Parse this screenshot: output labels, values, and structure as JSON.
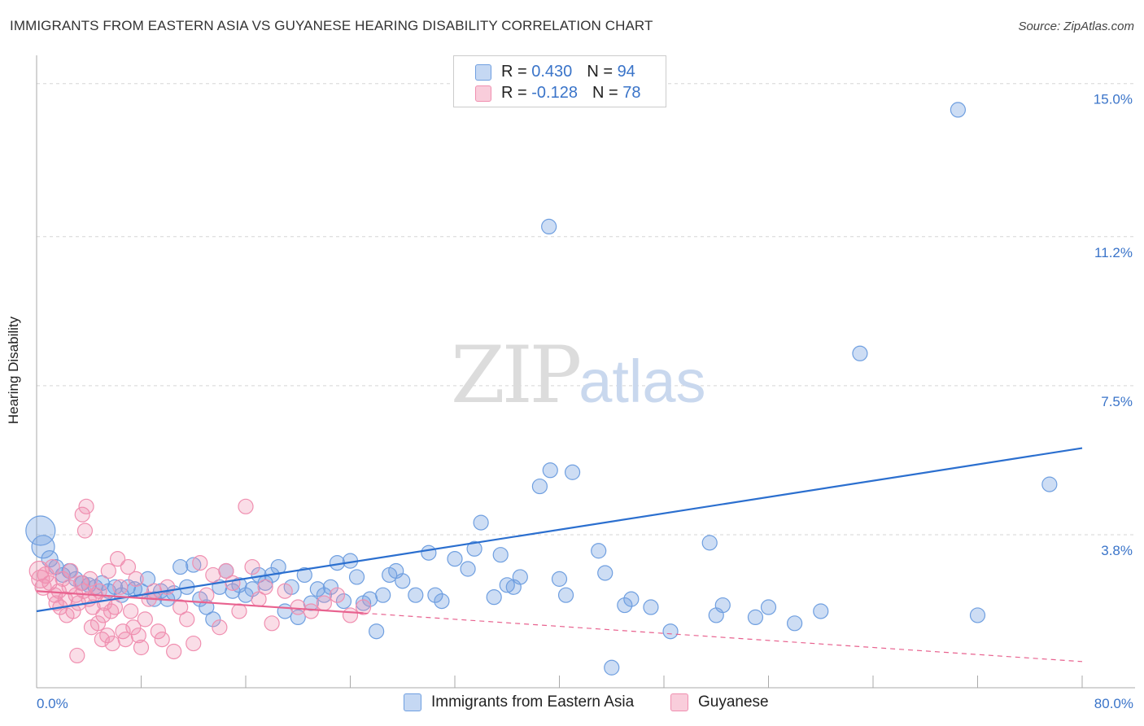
{
  "title": "IMMIGRANTS FROM EASTERN ASIA VS GUYANESE HEARING DISABILITY CORRELATION CHART",
  "source": "Source: ZipAtlas.com",
  "watermark": {
    "zip": "ZIP",
    "atlas": "atlas"
  },
  "legend": {
    "blue": {
      "r_label": "R = ",
      "r_value": "0.430",
      "n_label": "N = ",
      "n_value": "94"
    },
    "pink": {
      "r_label": "R = ",
      "r_value": "-0.128",
      "n_label": "N = ",
      "n_value": "78"
    }
  },
  "colors": {
    "blue": "#6f9fe0",
    "blue_line": "#2b6fcf",
    "pink": "#f08fb0",
    "pink_line": "#e8628f",
    "axis_text": "#3a74c9"
  },
  "chart_data": {
    "type": "scatter",
    "title": "IMMIGRANTS FROM EASTERN ASIA VS GUYANESE HEARING DISABILITY CORRELATION CHART",
    "xlabel": "",
    "ylabel": "Hearing Disability",
    "xlim": [
      0,
      80
    ],
    "ylim": [
      0,
      15.5
    ],
    "x_tick_labels": [
      "0.0%",
      "80.0%"
    ],
    "y_ticks": [
      3.8,
      7.5,
      11.2,
      15.0
    ],
    "y_tick_labels": [
      "3.8%",
      "7.5%",
      "11.2%",
      "15.0%"
    ],
    "series": [
      {
        "name": "Immigrants from Eastern Asia",
        "color": "#6f9fe0",
        "trend": {
          "x": [
            0,
            80
          ],
          "y": [
            1.9,
            5.95
          ]
        },
        "trend_solid_to": 80,
        "points": [
          [
            0.3,
            3.9,
            18
          ],
          [
            0.5,
            3.5,
            14
          ],
          [
            1,
            3.2,
            10
          ],
          [
            1.5,
            3.0,
            9
          ],
          [
            2,
            2.8,
            9
          ],
          [
            2.5,
            2.9,
            9
          ],
          [
            3,
            2.7,
            9
          ],
          [
            3.5,
            2.6,
            9
          ],
          [
            4,
            2.55,
            9
          ],
          [
            4.5,
            2.5,
            9
          ],
          [
            5,
            2.6,
            9
          ],
          [
            5.5,
            2.4,
            9
          ],
          [
            6,
            2.5,
            9
          ],
          [
            6.5,
            2.3,
            9
          ],
          [
            7,
            2.5,
            9
          ],
          [
            7.5,
            2.45,
            9
          ],
          [
            8,
            2.4,
            9
          ],
          [
            8.5,
            2.7,
            9
          ],
          [
            9,
            2.2,
            9
          ],
          [
            9.5,
            2.4,
            9
          ],
          [
            10,
            2.2,
            9
          ],
          [
            10.5,
            2.35,
            9
          ],
          [
            11,
            3.0,
            9
          ],
          [
            11.5,
            2.5,
            9
          ],
          [
            12,
            3.05,
            9
          ],
          [
            12.5,
            2.2,
            9
          ],
          [
            13,
            2.0,
            9
          ],
          [
            13.5,
            1.7,
            9
          ],
          [
            14,
            2.5,
            9
          ],
          [
            14.5,
            2.9,
            9
          ],
          [
            15,
            2.4,
            9
          ],
          [
            15.5,
            2.55,
            9
          ],
          [
            16,
            2.3,
            9
          ],
          [
            16.5,
            2.45,
            9
          ],
          [
            17,
            2.8,
            9
          ],
          [
            17.5,
            2.6,
            9
          ],
          [
            18,
            2.8,
            9
          ],
          [
            18.5,
            3.0,
            9
          ],
          [
            19,
            1.9,
            9
          ],
          [
            19.5,
            2.5,
            9
          ],
          [
            20,
            1.75,
            9
          ],
          [
            20.5,
            2.8,
            9
          ],
          [
            21,
            2.1,
            9
          ],
          [
            21.5,
            2.45,
            9
          ],
          [
            22,
            2.3,
            9
          ],
          [
            22.5,
            2.5,
            9
          ],
          [
            23,
            3.1,
            9
          ],
          [
            23.5,
            2.15,
            9
          ],
          [
            24,
            3.15,
            9
          ],
          [
            24.5,
            2.75,
            9
          ],
          [
            25,
            2.1,
            9
          ],
          [
            25.5,
            2.2,
            9
          ],
          [
            26,
            1.4,
            9
          ],
          [
            26.5,
            2.3,
            9
          ],
          [
            27,
            2.8,
            9
          ],
          [
            27.5,
            2.9,
            9
          ],
          [
            28,
            2.65,
            9
          ],
          [
            29,
            2.3,
            9
          ],
          [
            30,
            3.35,
            9
          ],
          [
            30.5,
            2.3,
            9
          ],
          [
            31,
            2.15,
            9
          ],
          [
            32,
            3.2,
            9
          ],
          [
            33,
            2.95,
            9
          ],
          [
            33.5,
            3.45,
            9
          ],
          [
            34,
            4.1,
            9
          ],
          [
            35,
            2.25,
            9
          ],
          [
            35.5,
            3.3,
            9
          ],
          [
            36,
            2.55,
            9
          ],
          [
            36.5,
            2.5,
            9
          ],
          [
            37,
            2.75,
            9
          ],
          [
            38.5,
            5.0,
            9
          ],
          [
            39.3,
            5.4,
            9
          ],
          [
            39.2,
            11.45,
            9
          ],
          [
            41,
            5.35,
            9
          ],
          [
            40,
            2.7,
            9
          ],
          [
            40.5,
            2.3,
            9
          ],
          [
            43,
            3.4,
            9
          ],
          [
            43.5,
            2.85,
            9
          ],
          [
            44,
            0.5,
            9
          ],
          [
            45,
            2.05,
            9
          ],
          [
            45.5,
            2.2,
            9
          ],
          [
            47,
            2.0,
            9
          ],
          [
            48.5,
            1.4,
            9
          ],
          [
            51.5,
            3.6,
            9
          ],
          [
            52,
            1.8,
            9
          ],
          [
            52.5,
            2.05,
            9
          ],
          [
            63,
            8.3,
            9
          ],
          [
            70.5,
            14.35,
            9
          ],
          [
            77.5,
            5.05,
            9
          ],
          [
            72,
            1.8,
            9
          ],
          [
            60,
            1.9,
            9
          ],
          [
            55,
            1.75,
            9
          ],
          [
            56,
            2.0,
            9
          ],
          [
            58,
            1.6,
            9
          ]
        ]
      },
      {
        "name": "Guyanese",
        "color": "#f08fb0",
        "trend": {
          "x": [
            0,
            80
          ],
          "y": [
            2.4,
            0.65
          ]
        },
        "trend_solid_to": 25,
        "points": [
          [
            0.2,
            2.9,
            12
          ],
          [
            0.3,
            2.7,
            11
          ],
          [
            0.5,
            2.5,
            10
          ],
          [
            0.7,
            2.8,
            10
          ],
          [
            1,
            2.6,
            9
          ],
          [
            1.2,
            3.0,
            9
          ],
          [
            1.4,
            2.3,
            9
          ],
          [
            1.5,
            2.1,
            9
          ],
          [
            1.7,
            2.4,
            9
          ],
          [
            1.8,
            2.0,
            9
          ],
          [
            2,
            2.7,
            9
          ],
          [
            2.2,
            2.2,
            9
          ],
          [
            2.3,
            1.8,
            9
          ],
          [
            2.5,
            2.5,
            9
          ],
          [
            2.6,
            2.9,
            9
          ],
          [
            2.8,
            1.9,
            9
          ],
          [
            3,
            2.3,
            9
          ],
          [
            3.1,
            0.8,
            9
          ],
          [
            3.2,
            2.1,
            9
          ],
          [
            3.4,
            2.6,
            9
          ],
          [
            3.5,
            4.3,
            9
          ],
          [
            3.6,
            2.4,
            9
          ],
          [
            3.7,
            3.9,
            9
          ],
          [
            3.8,
            4.5,
            9
          ],
          [
            4,
            2.2,
            9
          ],
          [
            4.1,
            2.7,
            9
          ],
          [
            4.2,
            1.5,
            9
          ],
          [
            4.3,
            2.0,
            9
          ],
          [
            4.5,
            2.3,
            9
          ],
          [
            4.7,
            1.6,
            9
          ],
          [
            4.8,
            2.4,
            9
          ],
          [
            5,
            1.2,
            9
          ],
          [
            5.1,
            1.8,
            9
          ],
          [
            5.2,
            2.1,
            9
          ],
          [
            5.4,
            1.3,
            9
          ],
          [
            5.5,
            2.9,
            9
          ],
          [
            5.7,
            1.9,
            9
          ],
          [
            5.8,
            1.1,
            9
          ],
          [
            6,
            2.0,
            9
          ],
          [
            6.2,
            3.2,
            9
          ],
          [
            6.4,
            2.5,
            9
          ],
          [
            6.6,
            1.4,
            9
          ],
          [
            6.8,
            1.2,
            9
          ],
          [
            7,
            3.0,
            9
          ],
          [
            7.2,
            1.9,
            9
          ],
          [
            7.4,
            1.5,
            9
          ],
          [
            7.6,
            2.7,
            9
          ],
          [
            7.8,
            1.3,
            9
          ],
          [
            8,
            1.0,
            9
          ],
          [
            8.3,
            1.7,
            9
          ],
          [
            8.6,
            2.2,
            9
          ],
          [
            9,
            2.4,
            9
          ],
          [
            9.3,
            1.4,
            9
          ],
          [
            9.6,
            1.2,
            9
          ],
          [
            10,
            2.5,
            9
          ],
          [
            10.5,
            0.9,
            9
          ],
          [
            11,
            2.0,
            9
          ],
          [
            11.5,
            1.7,
            9
          ],
          [
            12,
            1.1,
            9
          ],
          [
            12.5,
            3.1,
            9
          ],
          [
            13,
            2.3,
            9
          ],
          [
            13.5,
            2.8,
            9
          ],
          [
            14,
            1.5,
            9
          ],
          [
            14.5,
            2.9,
            9
          ],
          [
            15,
            2.6,
            9
          ],
          [
            15.5,
            1.9,
            9
          ],
          [
            16,
            4.5,
            9
          ],
          [
            16.5,
            3.0,
            9
          ],
          [
            17,
            2.2,
            9
          ],
          [
            17.5,
            2.5,
            9
          ],
          [
            18,
            1.6,
            9
          ],
          [
            19,
            2.4,
            9
          ],
          [
            20,
            2.0,
            9
          ],
          [
            21,
            1.9,
            9
          ],
          [
            22,
            2.1,
            9
          ],
          [
            23,
            2.3,
            9
          ],
          [
            24,
            1.8,
            9
          ],
          [
            25,
            2.0,
            9
          ]
        ]
      }
    ]
  }
}
